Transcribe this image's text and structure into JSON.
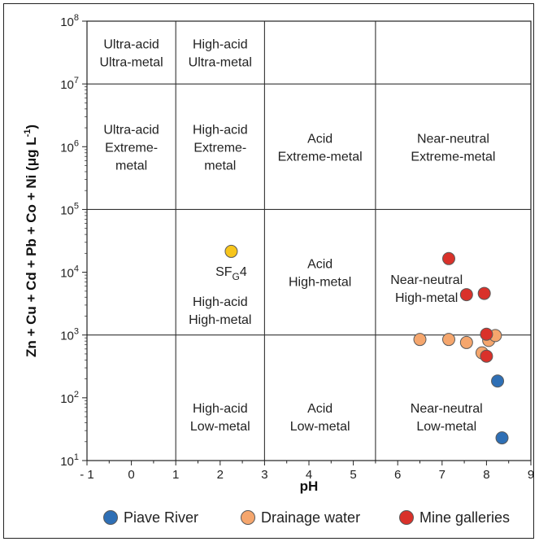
{
  "chart_data": {
    "type": "scatter",
    "xlabel": "pH",
    "ylabel": "Zn + Cu + Cd + Pb + Co + Ni (μg L",
    "ylabel_sup": "-1",
    "ylabel_close": ")",
    "xlim": [
      -1,
      9
    ],
    "ylim": [
      10,
      100000000
    ],
    "y_scale": "log",
    "x_ticks": [
      "- 1",
      "0",
      "1",
      "2",
      "3",
      "4",
      "5",
      "6",
      "7",
      "8",
      "9"
    ],
    "y_ticks": [
      {
        "base": "10",
        "exp": "1"
      },
      {
        "base": "10",
        "exp": "2"
      },
      {
        "base": "10",
        "exp": "3"
      },
      {
        "base": "10",
        "exp": "4"
      },
      {
        "base": "10",
        "exp": "5"
      },
      {
        "base": "10",
        "exp": "6"
      },
      {
        "base": "10",
        "exp": "7"
      },
      {
        "base": "10",
        "exp": "8"
      }
    ],
    "region_boundaries": {
      "x": [
        1,
        3,
        5.5
      ],
      "y": [
        1000,
        100000,
        10000000
      ]
    },
    "region_labels": [
      {
        "lines": [
          "Ultra-acid",
          "Ultra-metal"
        ],
        "x": 0,
        "y": 31600000
      },
      {
        "lines": [
          "High-acid",
          "Ultra-metal"
        ],
        "x": 2,
        "y": 31600000
      },
      {
        "lines": [
          "Ultra-acid",
          "Extreme-",
          "metal"
        ],
        "x": 0,
        "y": 1000000
      },
      {
        "lines": [
          "High-acid",
          "Extreme-",
          "metal"
        ],
        "x": 2,
        "y": 1000000
      },
      {
        "lines": [
          "Acid",
          "Extreme-metal"
        ],
        "x": 4.25,
        "y": 1000000
      },
      {
        "lines": [
          "Near-neutral",
          "Extreme-metal"
        ],
        "x": 7.25,
        "y": 1000000
      },
      {
        "lines": [
          "Acid",
          "High-metal"
        ],
        "x": 4.25,
        "y": 10000
      },
      {
        "lines": [
          "High-acid",
          "High-metal"
        ],
        "x": 2,
        "y": 2500
      },
      {
        "lines": [
          "Near-neutral",
          "High-metal"
        ],
        "x": 6.65,
        "y": 5600
      },
      {
        "lines": [
          "High-acid",
          "Low-metal"
        ],
        "x": 2,
        "y": 50
      },
      {
        "lines": [
          "Acid",
          "Low-metal"
        ],
        "x": 4.25,
        "y": 50
      },
      {
        "lines": [
          "Near-neutral",
          "Low-metal"
        ],
        "x": 7.1,
        "y": 50
      }
    ],
    "annotations": [
      {
        "text": "SF",
        "sub": "G",
        "tail": "4",
        "x": 2.25,
        "y": 10500
      }
    ],
    "series": [
      {
        "name": "Piave River",
        "color": "#2e6fb5",
        "points": [
          {
            "x": 8.25,
            "y": 185
          },
          {
            "x": 8.35,
            "y": 23
          }
        ]
      },
      {
        "name": "Drainage water",
        "color": "#f5a66d",
        "points": [
          {
            "x": 6.5,
            "y": 850
          },
          {
            "x": 7.15,
            "y": 850
          },
          {
            "x": 7.55,
            "y": 760
          },
          {
            "x": 7.9,
            "y": 520
          },
          {
            "x": 8.05,
            "y": 820
          },
          {
            "x": 8.2,
            "y": 980
          }
        ]
      },
      {
        "name": "Mine galleries",
        "color": "#d9312a",
        "points": [
          {
            "x": 7.15,
            "y": 16500
          },
          {
            "x": 7.55,
            "y": 4400
          },
          {
            "x": 7.95,
            "y": 4600
          },
          {
            "x": 8.0,
            "y": 1030
          },
          {
            "x": 8.0,
            "y": 460
          }
        ]
      }
    ],
    "highlight_points": [
      {
        "label": "SFG4",
        "color": "#f7c51b",
        "x": 2.25,
        "y": 21500
      }
    ],
    "legend_position": "bottom",
    "grid": false
  }
}
